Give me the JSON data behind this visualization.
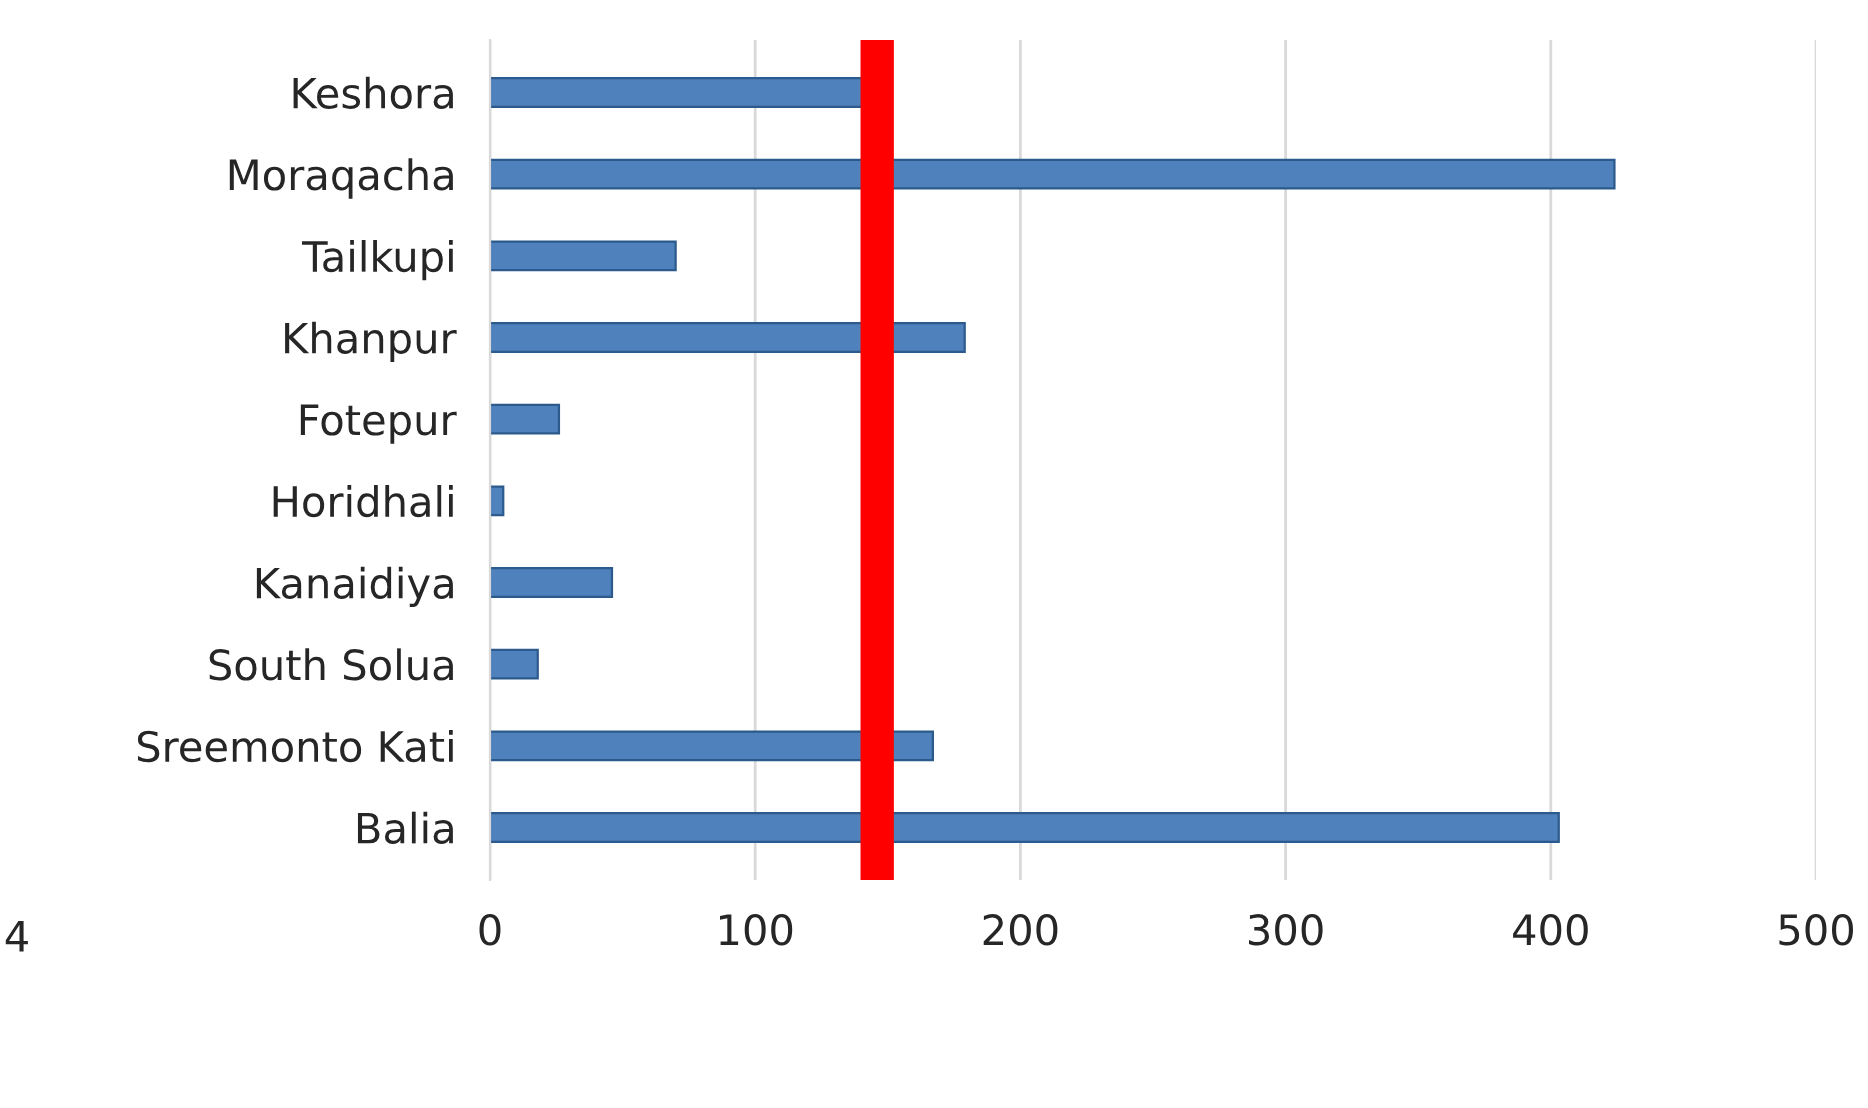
{
  "chart_data": {
    "type": "bar",
    "orientation": "horizontal",
    "categories": [
      "Keshora",
      "Moraqacha",
      "Tailkupi",
      "Khanpur",
      "Fotepur",
      "Horidhali",
      "Kanaidiya",
      "South Solua",
      "Sreemonto Kati",
      "Balia"
    ],
    "values": [
      141,
      424,
      70,
      179,
      26,
      5,
      46,
      18,
      167,
      403
    ],
    "color": "#4f81bd",
    "xlim": [
      0,
      500
    ],
    "xticks": [
      0,
      100,
      200,
      300,
      400,
      500
    ],
    "grid": "x",
    "ref_lines": [
      {
        "axis": "x",
        "value": 146,
        "color": "#ff0000"
      }
    ],
    "annotations": [
      "4"
    ]
  }
}
